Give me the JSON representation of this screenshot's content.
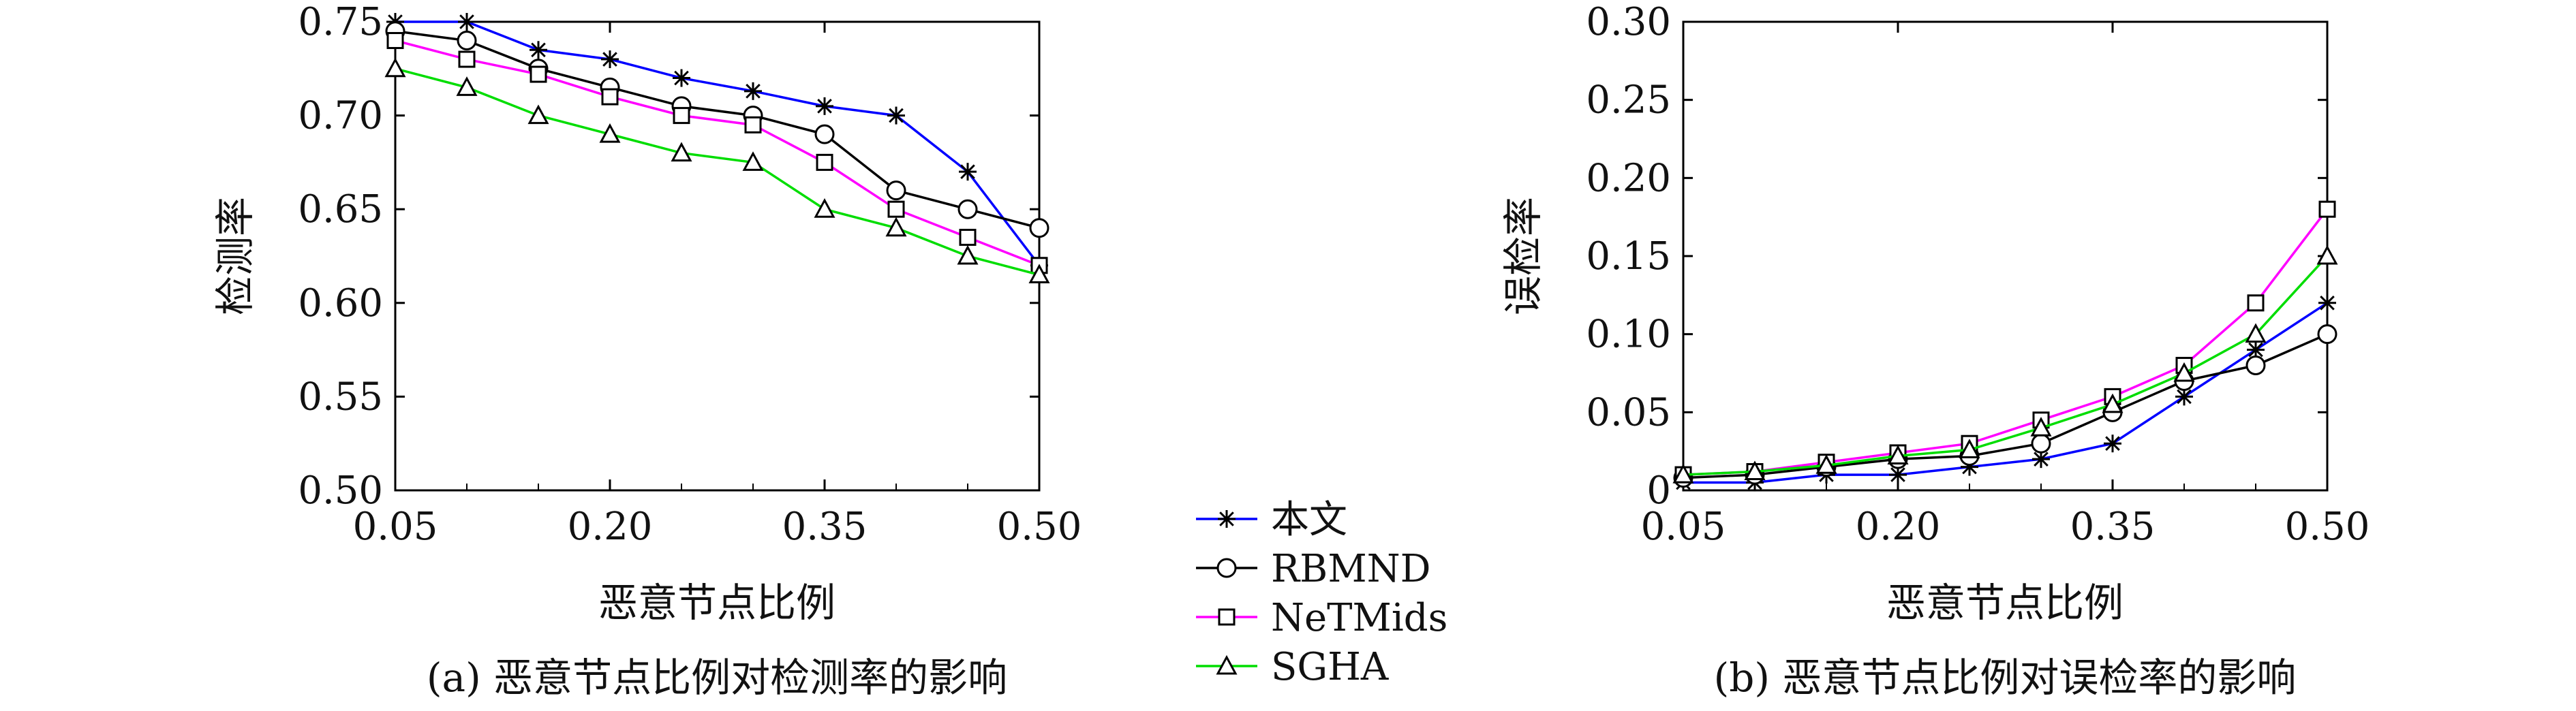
{
  "chart_data": [
    {
      "type": "line",
      "caption": "(a) 恶意节点比例对检测率的影响",
      "xlabel": "恶意节点比例",
      "ylabel": "检测率",
      "x": [
        0.05,
        0.1,
        0.15,
        0.2,
        0.25,
        0.3,
        0.35,
        0.4,
        0.45,
        0.5
      ],
      "xticks": [
        "0.05",
        "0.20",
        "0.35",
        "0.50"
      ],
      "yticks": [
        "0.50",
        "0.55",
        "0.60",
        "0.65",
        "0.70",
        "0.75"
      ],
      "xlim": [
        0.05,
        0.5
      ],
      "ylim": [
        0.5,
        0.75
      ],
      "series": [
        {
          "name": "本文",
          "color": "#0000ff",
          "marker": "star",
          "values": [
            0.75,
            0.75,
            0.735,
            0.73,
            0.72,
            0.713,
            0.705,
            0.7,
            0.67,
            0.62
          ]
        },
        {
          "name": "RBMND",
          "color": "#000000",
          "marker": "circle",
          "values": [
            0.745,
            0.74,
            0.725,
            0.715,
            0.705,
            0.7,
            0.69,
            0.66,
            0.65,
            0.64
          ]
        },
        {
          "name": "NeTMids",
          "color": "#ff00ff",
          "marker": "square",
          "values": [
            0.74,
            0.73,
            0.722,
            0.71,
            0.7,
            0.695,
            0.675,
            0.65,
            0.635,
            0.62
          ]
        },
        {
          "name": "SGHA",
          "color": "#00dd00",
          "marker": "triangle",
          "values": [
            0.725,
            0.715,
            0.7,
            0.69,
            0.68,
            0.675,
            0.65,
            0.64,
            0.625,
            0.615
          ]
        }
      ]
    },
    {
      "type": "line",
      "caption": "(b) 恶意节点比例对误检率的影响",
      "xlabel": "恶意节点比例",
      "ylabel": "误检率",
      "x": [
        0.05,
        0.1,
        0.15,
        0.2,
        0.25,
        0.3,
        0.35,
        0.4,
        0.45,
        0.5
      ],
      "xticks": [
        "0.05",
        "0.20",
        "0.35",
        "0.50"
      ],
      "yticks": [
        "0",
        "0.05",
        "0.10",
        "0.15",
        "0.20",
        "0.25",
        "0.30"
      ],
      "xlim": [
        0.05,
        0.5
      ],
      "ylim": [
        0,
        0.3
      ],
      "series": [
        {
          "name": "本文",
          "color": "#0000ff",
          "marker": "star",
          "values": [
            0.005,
            0.005,
            0.01,
            0.01,
            0.015,
            0.02,
            0.03,
            0.06,
            0.09,
            0.12
          ]
        },
        {
          "name": "RBMND",
          "color": "#000000",
          "marker": "circle",
          "values": [
            0.008,
            0.01,
            0.015,
            0.02,
            0.022,
            0.03,
            0.05,
            0.07,
            0.08,
            0.1
          ]
        },
        {
          "name": "NeTMids",
          "color": "#ff00ff",
          "marker": "square",
          "values": [
            0.01,
            0.012,
            0.018,
            0.024,
            0.03,
            0.045,
            0.06,
            0.08,
            0.12,
            0.18
          ]
        },
        {
          "name": "SGHA",
          "color": "#00dd00",
          "marker": "triangle",
          "values": [
            0.01,
            0.012,
            0.016,
            0.022,
            0.026,
            0.04,
            0.055,
            0.075,
            0.1,
            0.15
          ]
        }
      ]
    }
  ],
  "legend": [
    {
      "label": "本文",
      "color": "#0000ff",
      "marker": "star"
    },
    {
      "label": "RBMND",
      "color": "#000000",
      "marker": "circle"
    },
    {
      "label": "NeTMids",
      "color": "#ff00ff",
      "marker": "square"
    },
    {
      "label": "SGHA",
      "color": "#00dd00",
      "marker": "triangle"
    }
  ]
}
